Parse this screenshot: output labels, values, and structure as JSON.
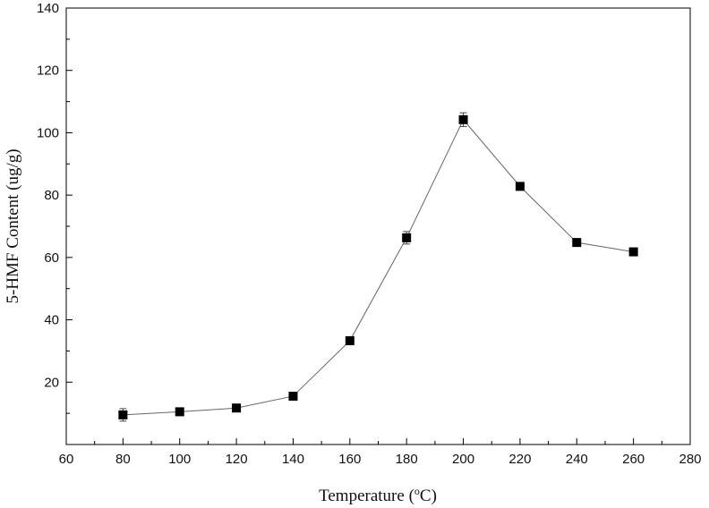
{
  "chart_data": {
    "type": "scatter",
    "xlabel_prefix": "Temperature (",
    "xlabel_sup": "o",
    "xlabel_suffix": "C)",
    "ylabel": "5-HMF Content (ug/g)",
    "xlim": [
      60,
      280
    ],
    "ylim": [
      0,
      140
    ],
    "x_ticks": [
      60,
      80,
      100,
      120,
      140,
      160,
      180,
      200,
      220,
      240,
      260,
      280
    ],
    "y_ticks": [
      20,
      40,
      60,
      80,
      100,
      120,
      140
    ],
    "grid": false,
    "legend": "none",
    "series": [
      {
        "x": [
          80,
          100,
          120,
          140,
          160,
          180,
          200,
          220,
          240,
          260
        ],
        "y": [
          9.5,
          10.5,
          11.7,
          15.5,
          33.3,
          66.3,
          104.2,
          82.8,
          64.8,
          61.8
        ],
        "error": [
          2.0,
          0.8,
          0.8,
          0.8,
          0.8,
          2.0,
          2.2,
          0.8,
          0.8,
          0.8
        ],
        "color": "#000000",
        "marker": "square",
        "line_color": "#666666"
      }
    ]
  }
}
